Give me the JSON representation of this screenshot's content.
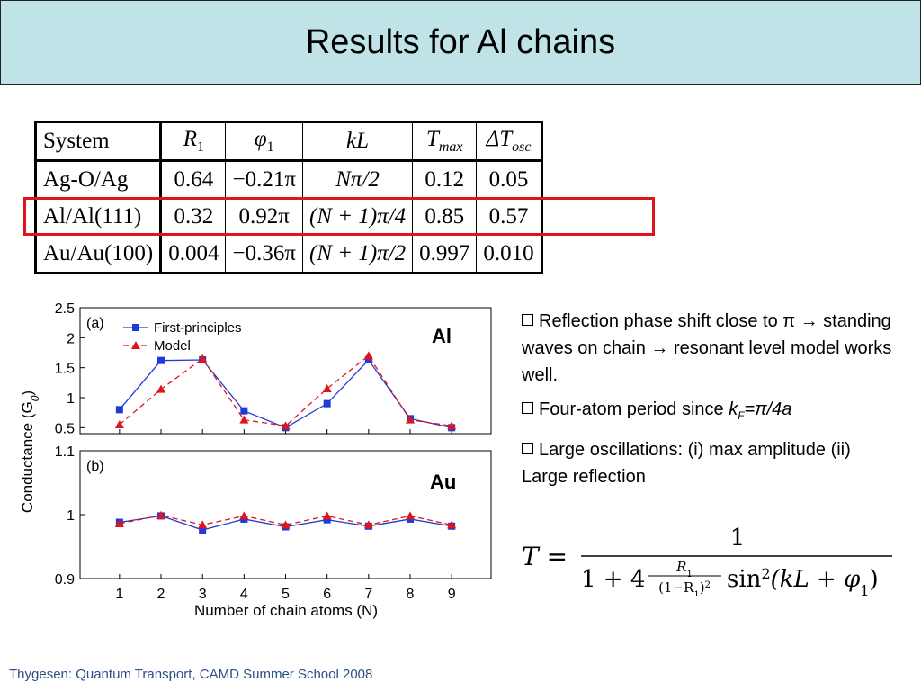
{
  "title": "Results for Al chains",
  "table": {
    "headers": [
      "System",
      "R₁",
      "φ₁",
      "kL",
      "Tmax",
      "ΔTosc"
    ],
    "header_parts": {
      "r1": {
        "base": "R",
        "sub": "1"
      },
      "phi1": {
        "base": "φ",
        "sub": "1"
      },
      "kl": "kL",
      "tmax": {
        "base": "T",
        "sub": "max"
      },
      "dtosc": {
        "base": "ΔT",
        "sub": "osc"
      }
    },
    "rows": [
      {
        "system": "Ag-O/Ag",
        "r1": "0.64",
        "phi1": "−0.21π",
        "kl": "Nπ/2",
        "tmax": "0.12",
        "dtosc": "0.05"
      },
      {
        "system": "Al/Al(111)",
        "r1": "0.32",
        "phi1": "0.92π",
        "kl": "(N + 1)π/4",
        "tmax": "0.85",
        "dtosc": "0.57"
      },
      {
        "system": "Au/Au(100)",
        "r1": "0.004",
        "phi1": "−0.36π",
        "kl": "(N + 1)π/2",
        "tmax": "0.997",
        "dtosc": "0.010"
      }
    ]
  },
  "chart_data": [
    {
      "type": "line",
      "panel_label": "(a)",
      "x": [
        1,
        2,
        3,
        4,
        5,
        6,
        7,
        8,
        9
      ],
      "ylim": [
        0.4,
        2.5
      ],
      "yticks": [
        "0.5",
        "1",
        "1.5",
        "2",
        "2.5"
      ],
      "series": [
        {
          "name": "First-principles",
          "color": "#1f3bd6",
          "values": [
            0.8,
            1.62,
            1.63,
            0.78,
            0.5,
            0.9,
            1.63,
            0.65,
            0.5
          ]
        },
        {
          "name": "Model",
          "color": "#e0141c",
          "values": [
            0.55,
            1.14,
            1.65,
            0.63,
            0.53,
            1.15,
            1.7,
            0.63,
            0.53
          ]
        }
      ]
    },
    {
      "type": "line",
      "panel_label": "(b)",
      "x": [
        1,
        2,
        3,
        4,
        5,
        6,
        7,
        8,
        9
      ],
      "ylim": [
        0.9,
        1.1
      ],
      "yticks": [
        "0.9",
        "1",
        "1.1"
      ],
      "series": [
        {
          "name": "First-principles",
          "color": "#1f3bd6",
          "values": [
            0.988,
            0.998,
            0.976,
            0.993,
            0.981,
            0.992,
            0.982,
            0.993,
            0.982
          ]
        },
        {
          "name": "Model",
          "color": "#e0141c",
          "values": [
            0.986,
            0.999,
            0.984,
            0.998,
            0.984,
            0.998,
            0.984,
            0.998,
            0.984
          ]
        }
      ]
    }
  ],
  "chart_axes": {
    "ylabel": "Conductance (G",
    "ylabel_sub": "0",
    "ylabel_close": ")",
    "xlabel": "Number of chain atoms (N)",
    "xticks": [
      "1",
      "2",
      "3",
      "4",
      "5",
      "6",
      "7",
      "8",
      "9"
    ]
  },
  "labels": {
    "al": "Al",
    "au": "Au"
  },
  "bullets": [
    {
      "text": "Reflection phase shift close to π → standing waves on chain → resonant level model works well."
    },
    {
      "text_before": "Four-atom period since ",
      "k": "k",
      "k_sub": "F",
      "eq": "=π/4a"
    },
    {
      "text": "Large oscillations: (i) max amplitude (ii)  Large reflection"
    }
  ],
  "formula": {
    "lhs": "T =",
    "numerator": "1",
    "denominator_start": "1 + 4",
    "frac_num": "R",
    "frac_num_sub": "1",
    "frac_den": "(1−R",
    "frac_den_sub": "1",
    "frac_den_end": ")",
    "frac_den_sup": "2",
    "sin": "sin",
    "sin_sup": "2",
    "arg": "(kL + φ",
    "arg_sub": "1",
    "arg_end": ")"
  },
  "footer": "Thygesen: Quantum Transport, CAMD Summer School 2008"
}
